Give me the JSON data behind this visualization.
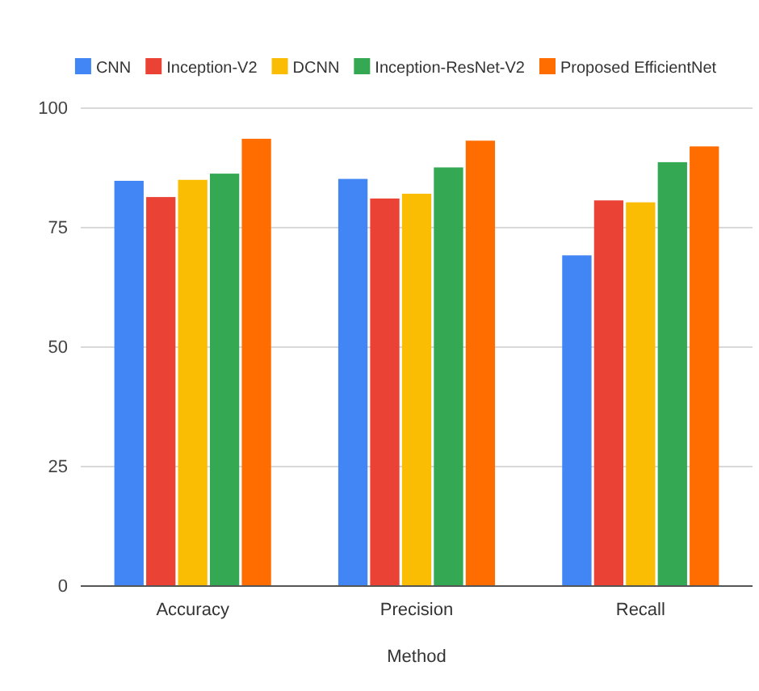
{
  "chart_data": {
    "type": "bar",
    "xlabel": "Method",
    "categories": [
      "Accuracy",
      "Precision",
      "Recall"
    ],
    "series": [
      {
        "name": "CNN",
        "color": "#4285f4",
        "values": [
          84.8,
          85.2,
          69.2
        ]
      },
      {
        "name": "Inception-V2",
        "color": "#ea4335",
        "values": [
          81.4,
          81.1,
          80.7
        ]
      },
      {
        "name": "DCNN",
        "color": "#fbbc04",
        "values": [
          85,
          82.1,
          80.3
        ]
      },
      {
        "name": "Inception-ResNet-V2",
        "color": "#34a853",
        "values": [
          86.3,
          87.6,
          88.7
        ]
      },
      {
        "name": "Proposed EfficientNet",
        "color": "#ff6d01",
        "values": [
          93.6,
          93.2,
          92
        ]
      }
    ],
    "ylim": [
      0,
      100
    ],
    "yticks": [
      0,
      25,
      50,
      75,
      100
    ],
    "grid": "y",
    "legend": "top"
  }
}
